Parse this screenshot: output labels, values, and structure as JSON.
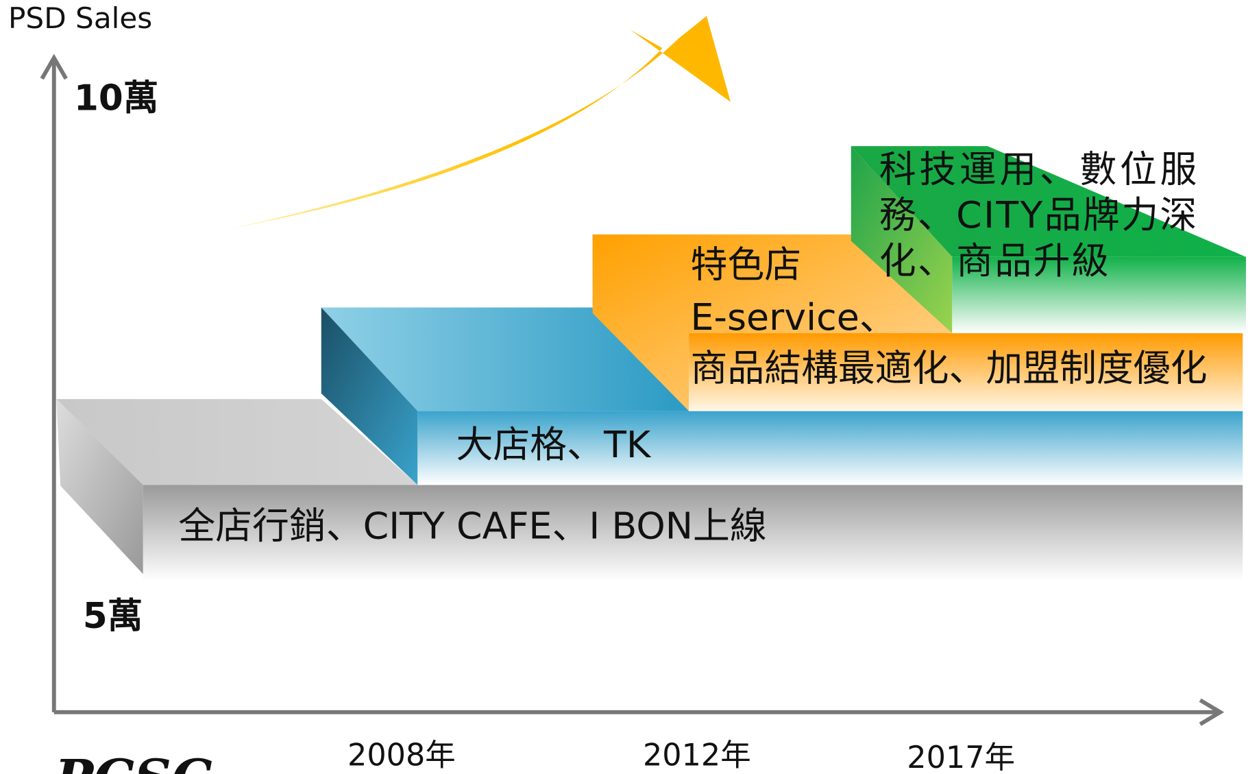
{
  "axis": {
    "y_title": "PSD Sales",
    "y_top": "10萬",
    "y_bottom": "5萬",
    "x_labels": [
      "2008年",
      "2012年",
      "2017年"
    ]
  },
  "steps": [
    {
      "lines": [
        "全店行銷、CITY CAFE、I BON上線"
      ]
    },
    {
      "lines": [
        "大店格、TK"
      ]
    },
    {
      "lines": [
        "特色店",
        "E-service、",
        "商品結構最適化、加盟制度優化"
      ]
    },
    {
      "lines": [
        "科技運用、數位服",
        "務、CITY品牌力深",
        "化、商品升級"
      ]
    }
  ],
  "logo": "PCSC"
}
